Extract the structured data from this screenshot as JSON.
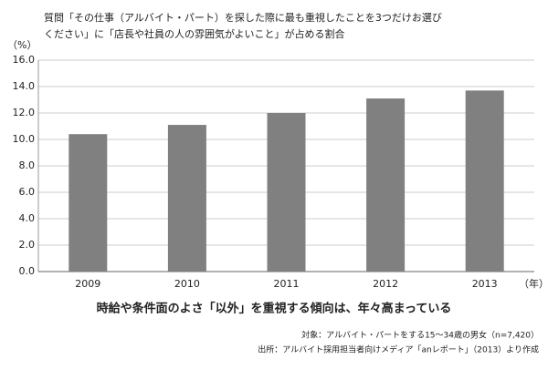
{
  "chart_data": {
    "type": "bar",
    "title": [
      "質問「その仕事（アルバイト・パート）を探した際に最も重視したことを3つだけお選び",
      "ください」に「店長や社員の人の雰囲気がよいこと」が占める割合"
    ],
    "y_label": "（%）",
    "x_label": "（年）",
    "subtitle": "時給や条件面のよさ「以外」を重視する傾向は、年々高まっている",
    "notes": [
      "対象：アルバイト・パートをする15～34歳の男女（n=7,420）",
      "出所：アルバイト採用担当者向けメディア「anレポート」（2013）より作成"
    ],
    "categories": [
      "2009",
      "2010",
      "2011",
      "2012",
      "2013"
    ],
    "values": [
      10.4,
      11.1,
      12.0,
      13.1,
      13.7
    ],
    "color": "#808080",
    "ylim": [
      0,
      16
    ],
    "yticks": [
      {
        "value": 0,
        "label": "0.0"
      },
      {
        "value": 2,
        "label": "2.0"
      },
      {
        "value": 4,
        "label": "4.0"
      },
      {
        "value": 6,
        "label": "6.0"
      },
      {
        "value": 8,
        "label": "8.0"
      },
      {
        "value": 10,
        "label": "10.0"
      },
      {
        "value": 12,
        "label": "12.0"
      },
      {
        "value": 14,
        "label": "14.0"
      },
      {
        "value": 16,
        "label": "16.0"
      }
    ],
    "grid": true
  }
}
